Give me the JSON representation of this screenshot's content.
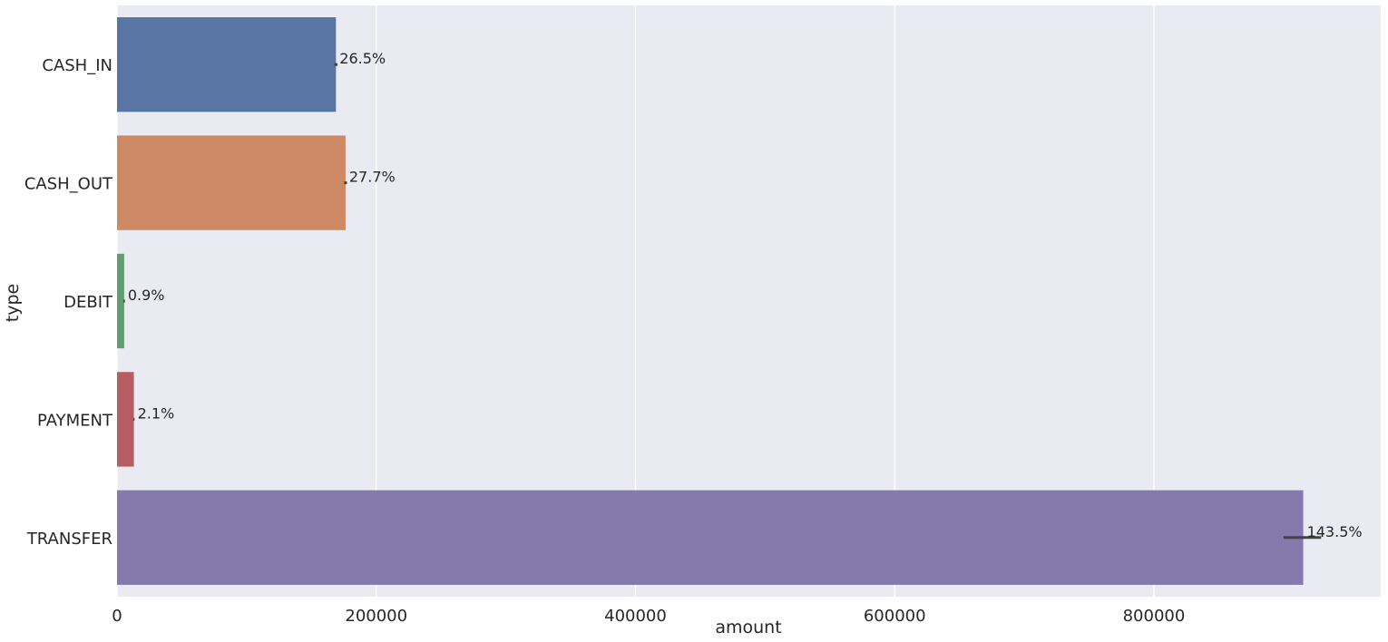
{
  "chart_data": {
    "type": "bar",
    "orientation": "horizontal",
    "xlabel": "amount",
    "ylabel": "type",
    "categories": [
      "CASH_IN",
      "CASH_OUT",
      "DEBIT",
      "PAYMENT",
      "TRANSFER"
    ],
    "values": [
      168900,
      176300,
      5500,
      13000,
      915200
    ],
    "ci_low": [
      167700,
      175200,
      4900,
      12500,
      900000
    ],
    "ci_high": [
      170100,
      177400,
      6100,
      13500,
      929000
    ],
    "data_labels": [
      "26.5%",
      "27.7%",
      "0.9%",
      "2.1%",
      "143.5%"
    ],
    "colors": [
      "#5875a4",
      "#cc8963",
      "#5f9e6e",
      "#b55d60",
      "#857aab"
    ],
    "xlim": [
      0,
      975000
    ],
    "xticks": [
      0,
      200000,
      400000,
      600000,
      800000
    ],
    "xtick_labels": [
      "0",
      "200000",
      "400000",
      "600000",
      "800000"
    ],
    "grid": true,
    "background": "#eaeaf2"
  }
}
